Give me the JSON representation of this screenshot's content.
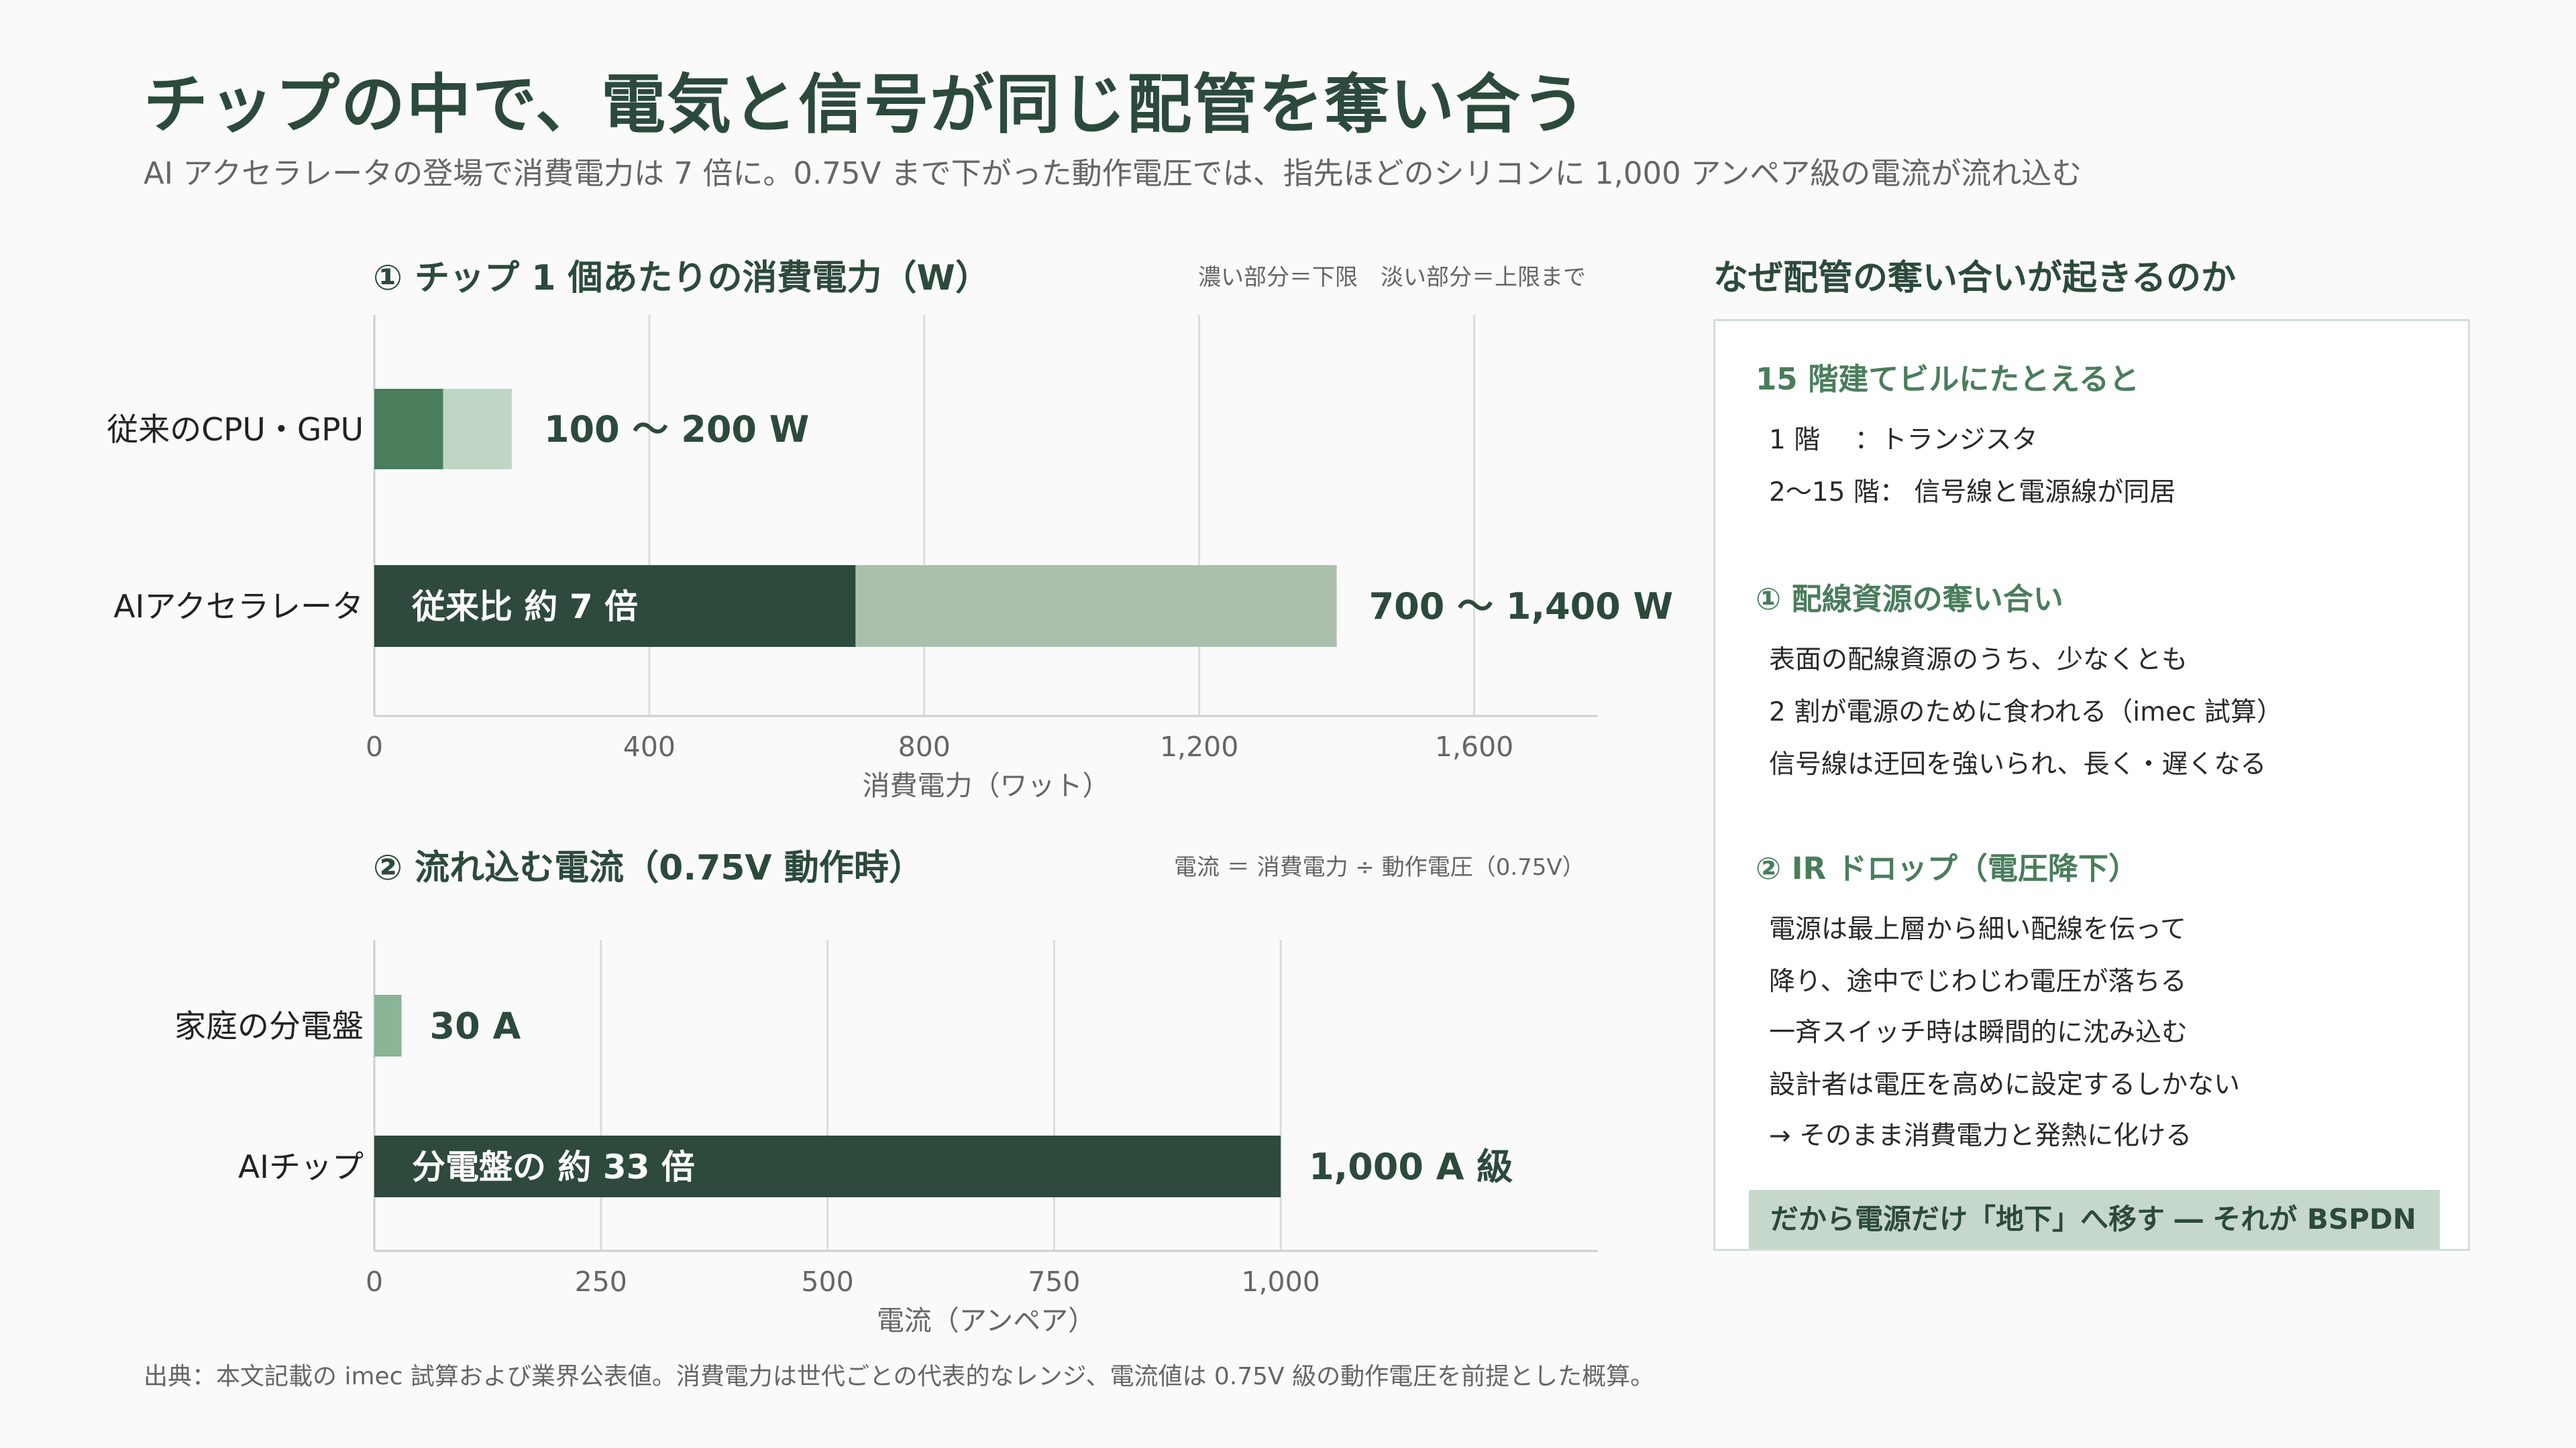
{
  "title": "チップの中で、電気と信号が同じ配管を奪い合う",
  "subtitle": "AI アクセラレータの登場で消費電力は 7 倍に。0.75V まで下がった動作電圧では、指先ほどのシリコンに 1,000 アンペア級の電流が流れ込む",
  "colors": {
    "dark": "#2e4a3d",
    "mid": "#4a7d5c",
    "light": "#bfd6c5",
    "lighter": "#aac0ad",
    "small": "#8ab596",
    "grid": "#dcdcdc",
    "text": "#2c4a3c"
  },
  "chart_data": [
    {
      "type": "bar",
      "orientation": "horizontal",
      "title": "① チップ 1 個あたりの消費電力（W）",
      "note": "濃い部分＝下限　淡い部分＝上限まで",
      "xlabel": "消費電力（ワット）",
      "xlim": [
        0,
        1780
      ],
      "xticks": [
        0,
        400,
        800,
        1200,
        1600
      ],
      "xtick_labels": [
        "0",
        "400",
        "800",
        "1,200",
        "1,600"
      ],
      "categories": [
        "従来のCPU・GPU",
        "AIアクセラレータ"
      ],
      "lower": [
        100,
        700
      ],
      "upper": [
        200,
        1400
      ],
      "value_labels": [
        "100 〜 200 W",
        "700 〜 1,400 W"
      ],
      "inner_labels": [
        "",
        "従来比 約 7 倍"
      ]
    },
    {
      "type": "bar",
      "orientation": "horizontal",
      "title": "② 流れ込む電流（0.75V 動作時）",
      "note": "電流 ＝ 消費電力 ÷ 動作電圧（0.75V）",
      "xlabel": "電流（アンペア）",
      "xlim": [
        0,
        1350
      ],
      "xticks": [
        0,
        250,
        500,
        750,
        1000
      ],
      "xtick_labels": [
        "0",
        "250",
        "500",
        "750",
        "1,000"
      ],
      "categories": [
        "家庭の分電盤",
        "AIチップ"
      ],
      "values": [
        30,
        1000
      ],
      "value_labels": [
        "30 A",
        "1,000 A 級"
      ],
      "inner_labels": [
        "",
        "分電盤の 約 33 倍"
      ]
    }
  ],
  "panel": {
    "heading": "なぜ配管の奪い合いが起きるのか",
    "analogy_heading": "15 階建てビルにたとえると",
    "analogy_lines": [
      "1 階　 ：トランジスタ",
      "2〜15 階： 信号線と電源線が同居"
    ],
    "section1_heading": "① 配線資源の奪い合い",
    "section1_lines": [
      "表面の配線資源のうち、少なくとも",
      "2 割が電源のために食われる（imec 試算）",
      "信号線は迂回を強いられ、長く・遅くなる"
    ],
    "section2_heading": "② IR ドロップ（電圧降下）",
    "section2_lines": [
      "電源は最上層から細い配線を伝って",
      "降り、途中でじわじわ電圧が落ちる",
      "一斉スイッチ時は瞬間的に沈み込む",
      "設計者は電圧を高めに設定するしかない",
      "→ そのまま消費電力と発熱に化ける"
    ],
    "conclusion": "だから電源だけ「地下」へ移す ― それが BSPDN"
  },
  "source": "出典：本文記載の imec 試算および業界公表値。消費電力は世代ごとの代表的なレンジ、電流値は 0.75V 級の動作電圧を前提とした概算。"
}
